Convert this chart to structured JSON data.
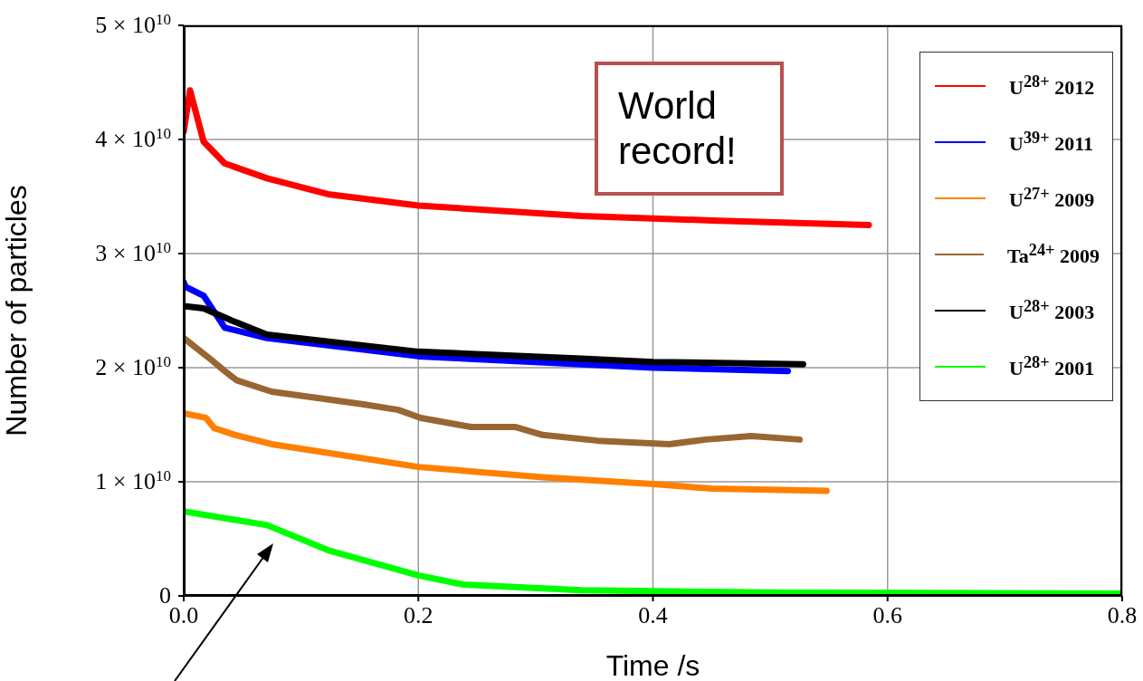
{
  "chart_data": {
    "type": "line",
    "xlabel": "Time /s",
    "ylabel": "Number of particles",
    "annotations": [
      "World record!"
    ],
    "xlim": [
      0,
      0.8
    ],
    "xticks": [
      {
        "value": 0,
        "label": "0.0"
      },
      0.2,
      0.4,
      0.6,
      0.8
    ],
    "ylim": [
      0,
      50000000000.0
    ],
    "yticks": [
      0,
      {
        "value": 10000000000.0,
        "label": "1 × 10$^{10}$"
      },
      {
        "value": 20000000000.0,
        "label": "2 × 10$^{10}$"
      },
      {
        "value": 30000000000.0,
        "label": "3 × 10$^{10}$"
      },
      {
        "value": 40000000000.0,
        "label": "4 × 10$^{10}$"
      },
      {
        "value": 50000000000.0,
        "label": "5 × 10$^{10}$"
      }
    ],
    "grid": true,
    "legend": "top right",
    "marker": "none",
    "line_style": "solid",
    "series": [
      {
        "name": "U$^{28+}$ 2012",
        "color": "#ff0000",
        "x": [
          0,
          0.0054,
          0.017,
          0.035,
          0.071,
          0.123,
          0.2,
          0.339,
          0.45,
          0.584
        ],
        "values": [
          40700000000.0,
          44300000000.0,
          39800000000.0,
          37900000000.0,
          36600000000.0,
          35200000000.0,
          34200000000.0,
          33300000000.0,
          32900000000.0,
          32500000000.0
        ]
      },
      {
        "name": "U$^{39+}$ 2011",
        "color": "#0000ff",
        "x": [
          0,
          0.0015,
          0.017,
          0.035,
          0.071,
          0.2,
          0.339,
          0.4,
          0.515
        ],
        "values": [
          27500000000.0,
          27100000000.0,
          26300000000.0,
          23500000000.0,
          22600000000.0,
          21000000000.0,
          20300000000.0,
          20000000000.0,
          19700000000.0
        ]
      },
      {
        "name": "U$^{27+}$ 2009",
        "color": "#ff8000",
        "x": [
          0,
          0.019,
          0.026,
          0.044,
          0.075,
          0.2,
          0.306,
          0.4,
          0.45,
          0.548
        ],
        "values": [
          16000000000.0,
          15600000000.0,
          14700000000.0,
          14100000000.0,
          13300000000.0,
          11300000000.0,
          10400000000.0,
          9800000000.0,
          9400000000.0,
          9200000000.0
        ]
      },
      {
        "name": "Ta$^{24+}$ 2009",
        "color": "#996633",
        "x": [
          0,
          0.021,
          0.035,
          0.045,
          0.075,
          0.152,
          0.183,
          0.202,
          0.245,
          0.283,
          0.306,
          0.353,
          0.414,
          0.445,
          0.484,
          0.525
        ],
        "values": [
          22600000000.0,
          20900000000.0,
          19700000000.0,
          18900000000.0,
          17900000000.0,
          16800000000.0,
          16300000000.0,
          15600000000.0,
          14800000000.0,
          14800000000.0,
          14100000000.0,
          13600000000.0,
          13300000000.0,
          13700000000.0,
          14000000000.0,
          13700000000.0
        ]
      },
      {
        "name": "U$^{28+}$ 2003",
        "color": "#000000",
        "x": [
          0,
          0.017,
          0.044,
          0.071,
          0.2,
          0.339,
          0.4,
          0.528
        ],
        "values": [
          25400000000.0,
          25200000000.0,
          24000000000.0,
          22900000000.0,
          21400000000.0,
          20800000000.0,
          20500000000.0,
          20300000000.0
        ]
      },
      {
        "name": "U$^{28+}$ 2001",
        "color": "#00ff00",
        "x": [
          0,
          0.071,
          0.123,
          0.2,
          0.238,
          0.339,
          0.5,
          0.8
        ],
        "values": [
          7400000000.0,
          6200000000.0,
          4000000000.0,
          1800000000.0,
          1000000000.0,
          500000000.0,
          300000000.0,
          200000000.0
        ]
      }
    ]
  }
}
